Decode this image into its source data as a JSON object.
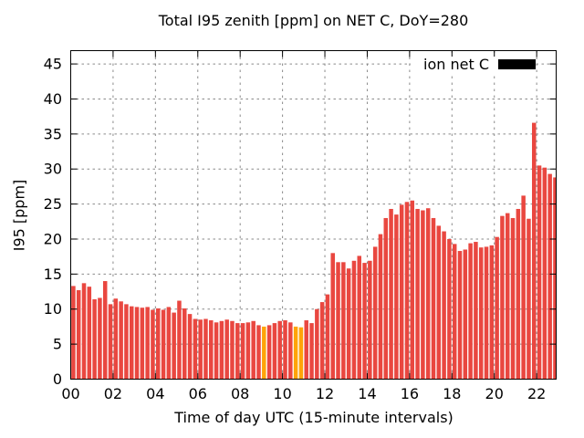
{
  "legend": {
    "label": "ion net C",
    "swatch_color": "#000000"
  },
  "chart_data": {
    "type": "bar",
    "title": "Total I95 zenith [ppm] on NET C, DoY=280",
    "xlabel": "Time of day UTC (15-minute intervals)",
    "ylabel": "I95 [ppm]",
    "ylim": [
      0,
      46.9
    ],
    "xlim_hours": [
      0,
      22.92
    ],
    "grid": true,
    "legend_position": "top-right",
    "x_tick_labels": [
      "00",
      "02",
      "04",
      "06",
      "08",
      "10",
      "12",
      "14",
      "16",
      "18",
      "20",
      "22"
    ],
    "y_tick_labels": [
      0,
      5,
      10,
      15,
      20,
      25,
      30,
      35,
      40,
      45
    ],
    "interval_minutes": 15,
    "colors": {
      "bar": "#e94740",
      "highlight": "#ffa408",
      "grid": "#8a8a8a",
      "axis": "#000000"
    },
    "times": [
      "00:00",
      "00:15",
      "00:30",
      "00:45",
      "01:00",
      "01:15",
      "01:30",
      "01:45",
      "02:00",
      "02:15",
      "02:30",
      "02:45",
      "03:00",
      "03:15",
      "03:30",
      "03:45",
      "04:00",
      "04:15",
      "04:30",
      "04:45",
      "05:00",
      "05:15",
      "05:30",
      "05:45",
      "06:00",
      "06:15",
      "06:30",
      "06:45",
      "07:00",
      "07:15",
      "07:30",
      "07:45",
      "08:00",
      "08:15",
      "08:30",
      "08:45",
      "09:00",
      "09:15",
      "09:30",
      "09:45",
      "10:00",
      "10:15",
      "10:30",
      "10:45",
      "11:00",
      "11:15",
      "11:30",
      "11:45",
      "12:00",
      "12:15",
      "12:30",
      "12:45",
      "13:00",
      "13:15",
      "13:30",
      "13:45",
      "14:00",
      "14:15",
      "14:30",
      "14:45",
      "15:00",
      "15:15",
      "15:30",
      "15:45",
      "16:00",
      "16:15",
      "16:30",
      "16:45",
      "17:00",
      "17:15",
      "17:30",
      "17:45",
      "18:00",
      "18:15",
      "18:30",
      "18:45",
      "19:00",
      "19:15",
      "19:30",
      "19:45",
      "20:00",
      "20:15",
      "20:30",
      "20:45",
      "21:00",
      "21:15",
      "21:30",
      "21:45",
      "22:00",
      "22:15",
      "22:30",
      "22:45"
    ],
    "values": [
      13.3,
      12.7,
      13.7,
      13.2,
      11.4,
      11.6,
      14.0,
      10.7,
      11.5,
      11.1,
      10.7,
      10.4,
      10.3,
      10.2,
      10.3,
      9.9,
      10.1,
      9.9,
      10.3,
      9.5,
      11.2,
      10.1,
      9.3,
      8.6,
      8.5,
      8.6,
      8.4,
      8.1,
      8.3,
      8.5,
      8.3,
      8.0,
      8.0,
      8.1,
      8.3,
      7.7,
      7.5,
      7.7,
      8.0,
      8.3,
      8.4,
      8.1,
      7.5,
      7.4,
      8.4,
      8.0,
      10.0,
      11.0,
      12.1,
      18.0,
      16.7,
      16.7,
      15.8,
      16.9,
      17.6,
      16.6,
      16.9,
      18.9,
      20.7,
      23.0,
      24.3,
      23.5,
      24.9,
      25.3,
      25.5,
      24.3,
      24.1,
      24.4,
      23.0,
      21.9,
      21.1,
      20.0,
      19.3,
      18.3,
      18.5,
      19.4,
      19.6,
      18.8,
      18.9,
      19.1,
      20.3,
      23.3,
      23.7,
      23.0,
      24.3,
      26.2,
      22.9,
      36.6,
      30.5,
      30.2,
      29.3,
      28.8
    ],
    "highlight_indices": [
      36,
      42,
      43
    ]
  }
}
